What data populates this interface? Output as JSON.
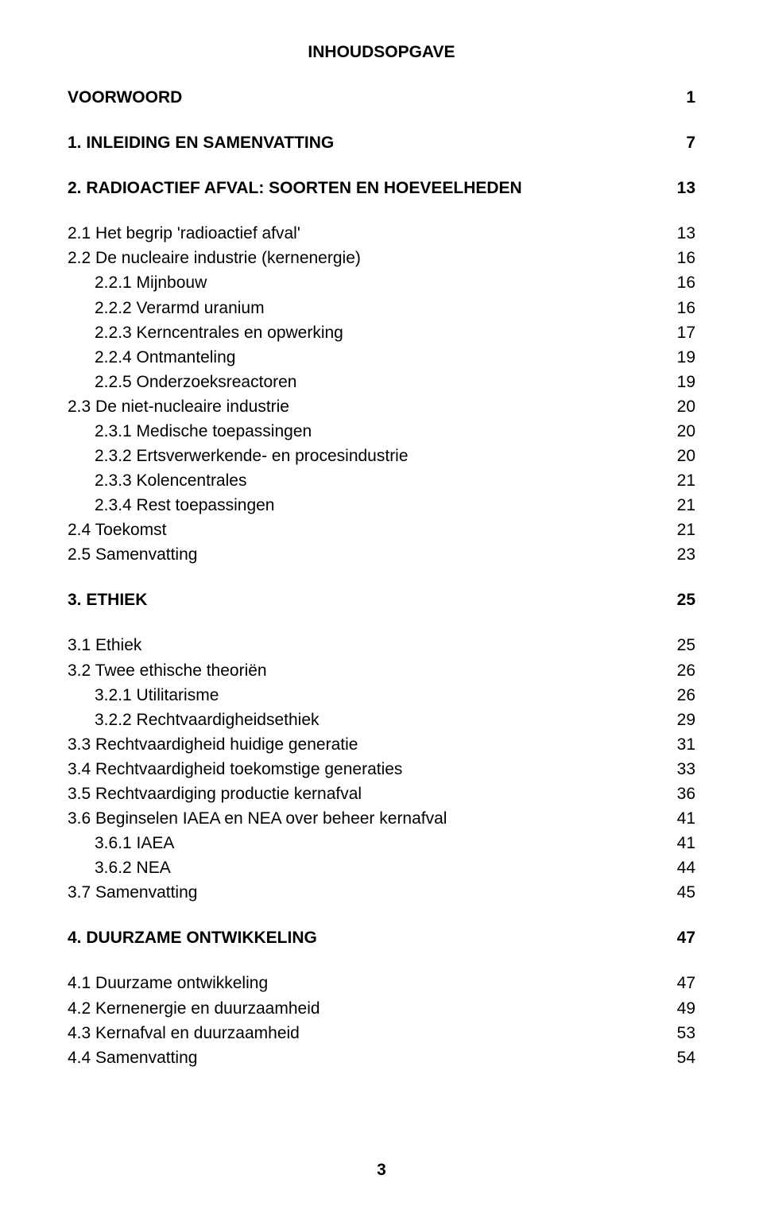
{
  "title": "INHOUDSOPGAVE",
  "page_number": "3",
  "font": {
    "family": "Arial, Helvetica, sans-serif",
    "size_pt": 16,
    "color": "#000000",
    "background": "#ffffff",
    "bold_weight": 700
  },
  "blocks": [
    {
      "rows": [
        {
          "label": "VOORWOORD",
          "page": "1",
          "bold": true,
          "indent": 0
        }
      ]
    },
    {
      "rows": [
        {
          "label": "1. INLEIDING EN SAMENVATTING",
          "page": "7",
          "bold": true,
          "indent": 0
        }
      ]
    },
    {
      "rows": [
        {
          "label": "2. RADIOACTIEF AFVAL: SOORTEN EN HOEVEELHEDEN",
          "page": "13",
          "bold": true,
          "indent": 0
        }
      ]
    },
    {
      "rows": [
        {
          "label": "2.1 Het begrip 'radioactief afval'",
          "page": "13",
          "bold": false,
          "indent": 0
        },
        {
          "label": "2.2 De nucleaire industrie (kernenergie)",
          "page": "16",
          "bold": false,
          "indent": 0
        },
        {
          "label": "2.2.1 Mijnbouw",
          "page": "16",
          "bold": false,
          "indent": 1
        },
        {
          "label": "2.2.2 Verarmd uranium",
          "page": "16",
          "bold": false,
          "indent": 1
        },
        {
          "label": "2.2.3 Kerncentrales en opwerking",
          "page": "17",
          "bold": false,
          "indent": 1
        },
        {
          "label": "2.2.4 Ontmanteling",
          "page": "19",
          "bold": false,
          "indent": 1
        },
        {
          "label": "2.2.5 Onderzoeksreactoren",
          "page": "19",
          "bold": false,
          "indent": 1
        },
        {
          "label": "2.3 De niet-nucleaire industrie",
          "page": "20",
          "bold": false,
          "indent": 0
        },
        {
          "label": "2.3.1 Medische toepassingen",
          "page": "20",
          "bold": false,
          "indent": 1
        },
        {
          "label": "2.3.2 Ertsverwerkende- en procesindustrie",
          "page": "20",
          "bold": false,
          "indent": 1
        },
        {
          "label": "2.3.3 Kolencentrales",
          "page": "21",
          "bold": false,
          "indent": 1
        },
        {
          "label": "2.3.4 Rest toepassingen",
          "page": "21",
          "bold": false,
          "indent": 1
        },
        {
          "label": "2.4 Toekomst",
          "page": "21",
          "bold": false,
          "indent": 0
        },
        {
          "label": "2.5 Samenvatting",
          "page": "23",
          "bold": false,
          "indent": 0
        }
      ]
    },
    {
      "rows": [
        {
          "label": "3. ETHIEK",
          "page": "25",
          "bold": true,
          "indent": 0
        }
      ]
    },
    {
      "rows": [
        {
          "label": "3.1 Ethiek",
          "page": "25",
          "bold": false,
          "indent": 0
        },
        {
          "label": "3.2 Twee ethische theoriën",
          "page": "26",
          "bold": false,
          "indent": 0
        },
        {
          "label": "3.2.1 Utilitarisme",
          "page": "26",
          "bold": false,
          "indent": 1
        },
        {
          "label": "3.2.2 Rechtvaardigheidsethiek",
          "page": "29",
          "bold": false,
          "indent": 1
        },
        {
          "label": "3.3 Rechtvaardigheid huidige generatie",
          "page": "31",
          "bold": false,
          "indent": 0
        },
        {
          "label": "3.4 Rechtvaardigheid toekomstige generaties",
          "page": "33",
          "bold": false,
          "indent": 0
        },
        {
          "label": "3.5 Rechtvaardiging productie kernafval",
          "page": "36",
          "bold": false,
          "indent": 0
        },
        {
          "label": "3.6 Beginselen IAEA en NEA over beheer kernafval",
          "page": "41",
          "bold": false,
          "indent": 0
        },
        {
          "label": "3.6.1 IAEA",
          "page": "41",
          "bold": false,
          "indent": 1
        },
        {
          "label": "3.6.2 NEA",
          "page": "44",
          "bold": false,
          "indent": 1
        },
        {
          "label": "3.7 Samenvatting",
          "page": "45",
          "bold": false,
          "indent": 0
        }
      ]
    },
    {
      "rows": [
        {
          "label": "4. DUURZAME ONTWIKKELING",
          "page": "47",
          "bold": true,
          "indent": 0
        }
      ]
    },
    {
      "rows": [
        {
          "label": "4.1 Duurzame ontwikkeling",
          "page": "47",
          "bold": false,
          "indent": 0
        },
        {
          "label": "4.2 Kernenergie en duurzaamheid",
          "page": "49",
          "bold": false,
          "indent": 0
        },
        {
          "label": "4.3 Kernafval en duurzaamheid",
          "page": "53",
          "bold": false,
          "indent": 0
        },
        {
          "label": "4.4 Samenvatting",
          "page": "54",
          "bold": false,
          "indent": 0
        }
      ]
    }
  ]
}
